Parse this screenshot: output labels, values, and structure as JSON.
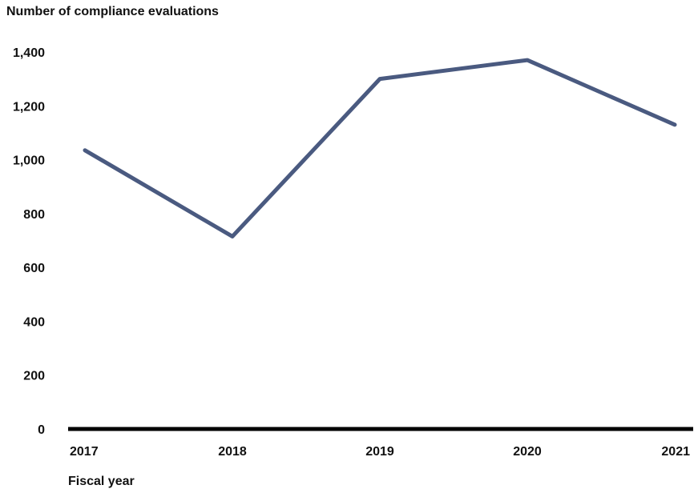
{
  "chart_data": {
    "type": "line",
    "title": "",
    "ylabel": "Number of compliance evaluations",
    "xlabel": "Fiscal year",
    "categories": [
      "2017",
      "2018",
      "2019",
      "2020",
      "2021"
    ],
    "series": [
      {
        "values": [
          1035,
          715,
          1300,
          1370,
          1130
        ]
      }
    ],
    "ylim": [
      0,
      1400
    ],
    "yticks": [
      0,
      200,
      400,
      600,
      800,
      1000,
      1200,
      1400
    ],
    "ytick_labels": [
      "0",
      "200",
      "400",
      "600",
      "800",
      "1,000",
      "1,200",
      "1,400"
    ],
    "grid": false,
    "legend": "none",
    "line_color": "#4a5a80",
    "axis_color": "#000000"
  }
}
